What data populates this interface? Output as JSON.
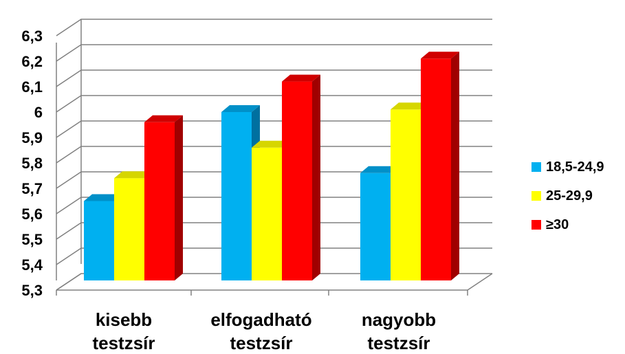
{
  "chart_data": {
    "type": "bar",
    "style": "3d-clustered-column",
    "categories": [
      [
        "kisebb",
        "testzsír"
      ],
      [
        "elfogadható",
        "testzsír"
      ],
      [
        "nagyobb",
        "testzsír"
      ]
    ],
    "series": [
      {
        "name": "18,5-24,9",
        "color": "#00B0F0",
        "side": "#0070A0",
        "top": "#0090C8",
        "values": [
          5.65,
          6.0,
          5.76
        ]
      },
      {
        "name": "25-29,9",
        "color": "#FFFF00",
        "side": "#B0B000",
        "top": "#D6D600",
        "values": [
          5.74,
          5.86,
          6.01
        ]
      },
      {
        "name": "≥30",
        "color": "#FF0000",
        "side": "#A00000",
        "top": "#D00000",
        "values": [
          5.96,
          6.12,
          6.21
        ]
      }
    ],
    "y_ticks": [
      "5,3",
      "5,4",
      "5,5",
      "5,6",
      "5,7",
      "5,8",
      "5,9",
      "6",
      "6,1",
      "6,2",
      "6,3"
    ],
    "ylim": [
      5.3,
      6.3
    ],
    "grid": true,
    "legend_position": "right",
    "title": "",
    "xlabel": "",
    "ylabel": ""
  }
}
